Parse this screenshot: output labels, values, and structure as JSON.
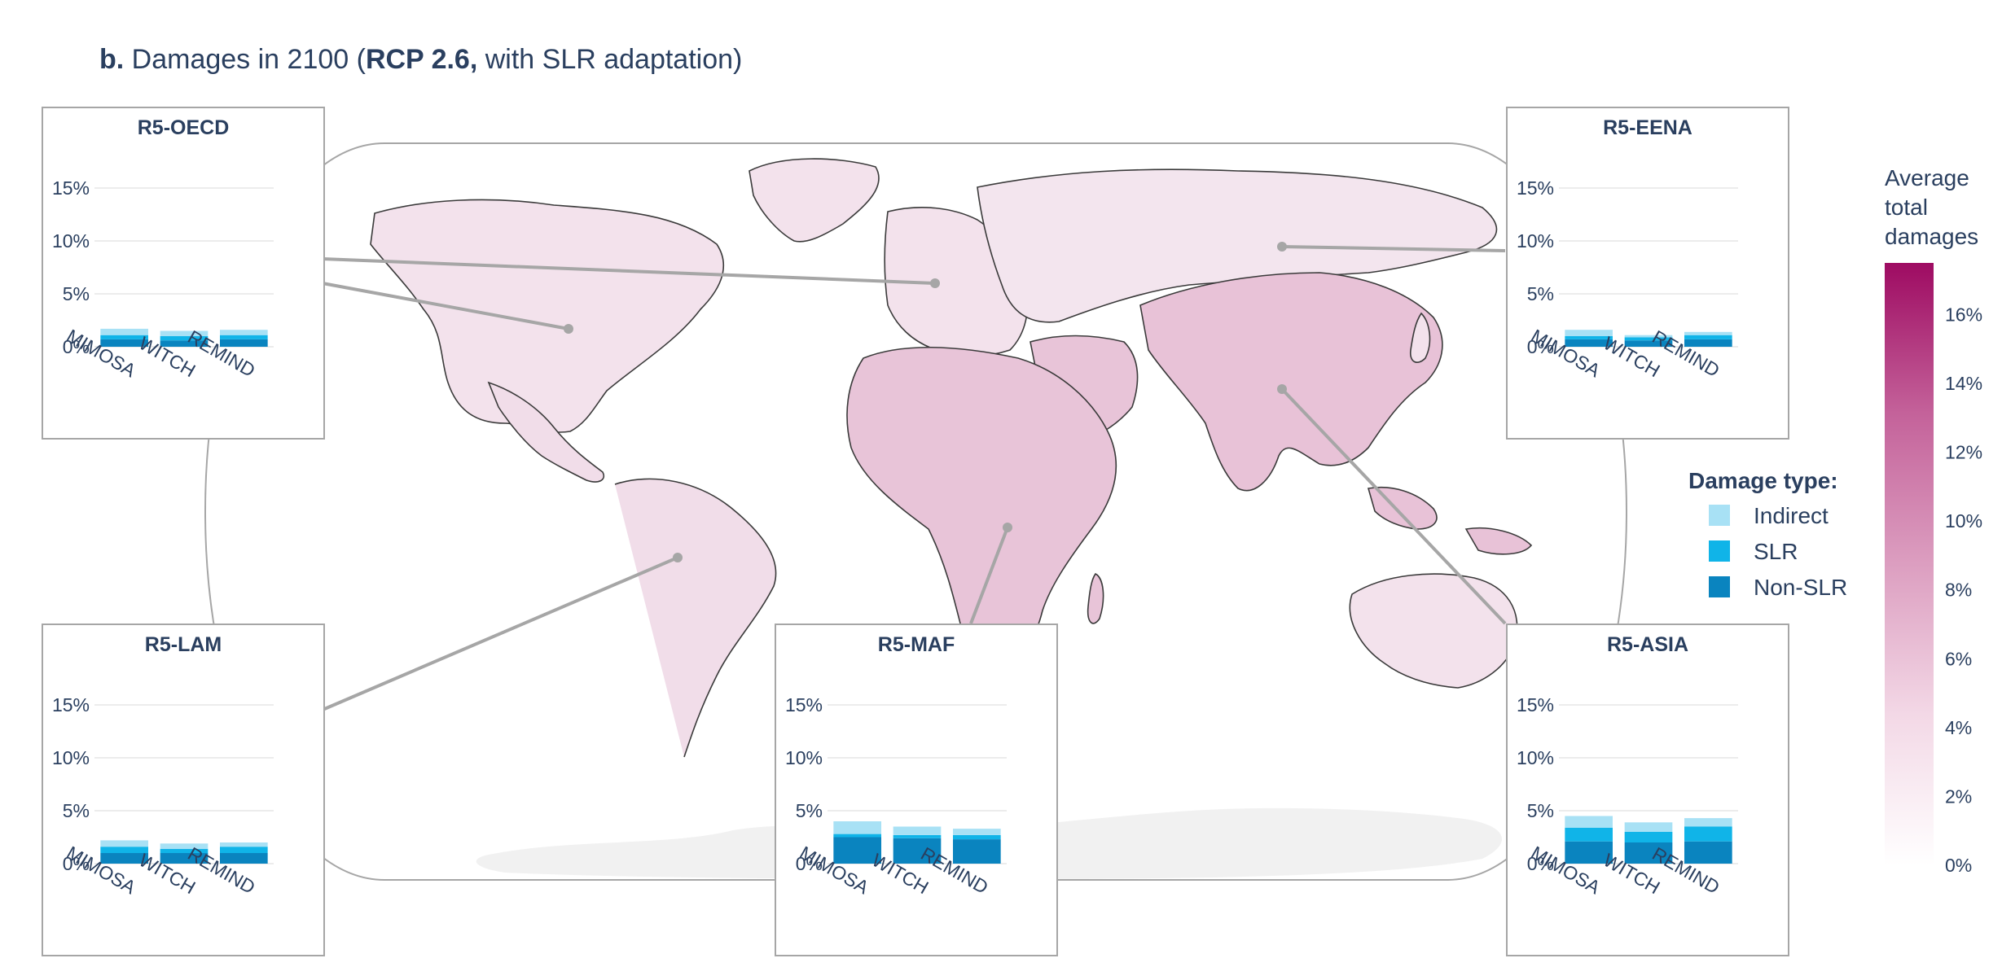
{
  "title": {
    "prefix": "b.",
    "text_before": "Damages in 2100 (",
    "scenario": "RCP 2.6,",
    "text_after": " with SLR adaptation)"
  },
  "colors": {
    "indirect": "#a8e1f5",
    "slr": "#10b4e8",
    "non_slr": "#0a84bf",
    "axis_text": "#2a3f5f",
    "grid": "#e6e6e6",
    "connector": "#a6a6a6",
    "panel_border": "#a6a6a6",
    "country_stroke": "#3a3a3a",
    "antarctica": "#f1f1f1",
    "colorbar_top": "#9e0b62"
  },
  "legend": {
    "title": "Damage type:",
    "items": [
      {
        "label": "Indirect",
        "color": "#a8e1f5"
      },
      {
        "label": "SLR",
        "color": "#10b4e8"
      },
      {
        "label": "Non-SLR",
        "color": "#0a84bf"
      }
    ]
  },
  "colorbar": {
    "title_lines": [
      "Average",
      "total",
      "damages"
    ],
    "range": [
      0,
      17.5
    ],
    "ticks": [
      "0%",
      "2%",
      "4%",
      "6%",
      "8%",
      "10%",
      "12%",
      "14%",
      "16%"
    ],
    "tick_values": [
      0,
      2,
      4,
      6,
      8,
      10,
      12,
      14,
      16
    ],
    "colors": [
      "#ffffff",
      "#f3d8e6",
      "#dc9ec0",
      "#c4629a",
      "#9e0b62"
    ]
  },
  "region_fill": {
    "R5-OECD": "#f3e2ec",
    "R5-EENA": "#f3e5ee",
    "R5-LAM": "#f1dde9",
    "R5-MAF": "#e8c4d8",
    "R5-ASIA": "#e8c2d7"
  },
  "chart_data": [
    {
      "type": "bar",
      "stacked": true,
      "title": "R5-OECD",
      "categories": [
        "MIMOSA",
        "WITCH",
        "REMIND"
      ],
      "series": [
        {
          "name": "Non-SLR",
          "values": [
            0.7,
            0.6,
            0.7
          ]
        },
        {
          "name": "SLR",
          "values": [
            0.4,
            0.4,
            0.4
          ]
        },
        {
          "name": "Indirect",
          "values": [
            0.6,
            0.5,
            0.5
          ]
        }
      ],
      "ylim": [
        0,
        16
      ],
      "yticks": [
        "0%",
        "5%",
        "10%",
        "15%"
      ],
      "ytick_values": [
        0,
        5,
        10,
        15
      ]
    },
    {
      "type": "bar",
      "stacked": true,
      "title": "R5-EENA",
      "categories": [
        "MIMOSA",
        "WITCH",
        "REMIND"
      ],
      "series": [
        {
          "name": "Non-SLR",
          "values": [
            0.7,
            0.6,
            0.7
          ]
        },
        {
          "name": "SLR",
          "values": [
            0.3,
            0.3,
            0.4
          ]
        },
        {
          "name": "Indirect",
          "values": [
            0.6,
            0.2,
            0.3
          ]
        }
      ],
      "ylim": [
        0,
        16
      ],
      "yticks": [
        "0%",
        "5%",
        "10%",
        "15%"
      ],
      "ytick_values": [
        0,
        5,
        10,
        15
      ]
    },
    {
      "type": "bar",
      "stacked": true,
      "title": "R5-LAM",
      "categories": [
        "MIMOSA",
        "WITCH",
        "REMIND"
      ],
      "series": [
        {
          "name": "Non-SLR",
          "values": [
            1.0,
            1.0,
            1.0
          ]
        },
        {
          "name": "SLR",
          "values": [
            0.6,
            0.4,
            0.6
          ]
        },
        {
          "name": "Indirect",
          "values": [
            0.6,
            0.5,
            0.4
          ]
        }
      ],
      "ylim": [
        0,
        16
      ],
      "yticks": [
        "0%",
        "5%",
        "10%",
        "15%"
      ],
      "ytick_values": [
        0,
        5,
        10,
        15
      ]
    },
    {
      "type": "bar",
      "stacked": true,
      "title": "R5-MAF",
      "categories": [
        "MIMOSA",
        "WITCH",
        "REMIND"
      ],
      "series": [
        {
          "name": "Non-SLR",
          "values": [
            2.5,
            2.4,
            2.3
          ]
        },
        {
          "name": "SLR",
          "values": [
            0.3,
            0.3,
            0.4
          ]
        },
        {
          "name": "Indirect",
          "values": [
            1.2,
            0.8,
            0.6
          ]
        }
      ],
      "ylim": [
        0,
        16
      ],
      "yticks": [
        "0%",
        "5%",
        "10%",
        "15%"
      ],
      "ytick_values": [
        0,
        5,
        10,
        15
      ]
    },
    {
      "type": "bar",
      "stacked": true,
      "title": "R5-ASIA",
      "categories": [
        "MIMOSA",
        "WITCH",
        "REMIND"
      ],
      "series": [
        {
          "name": "Non-SLR",
          "values": [
            2.1,
            2.0,
            2.1
          ]
        },
        {
          "name": "SLR",
          "values": [
            1.3,
            1.0,
            1.4
          ]
        },
        {
          "name": "Indirect",
          "values": [
            1.1,
            0.9,
            0.8
          ]
        }
      ],
      "ylim": [
        0,
        16
      ],
      "yticks": [
        "0%",
        "5%",
        "10%",
        "15%"
      ],
      "ytick_values": [
        0,
        5,
        10,
        15
      ]
    }
  ]
}
